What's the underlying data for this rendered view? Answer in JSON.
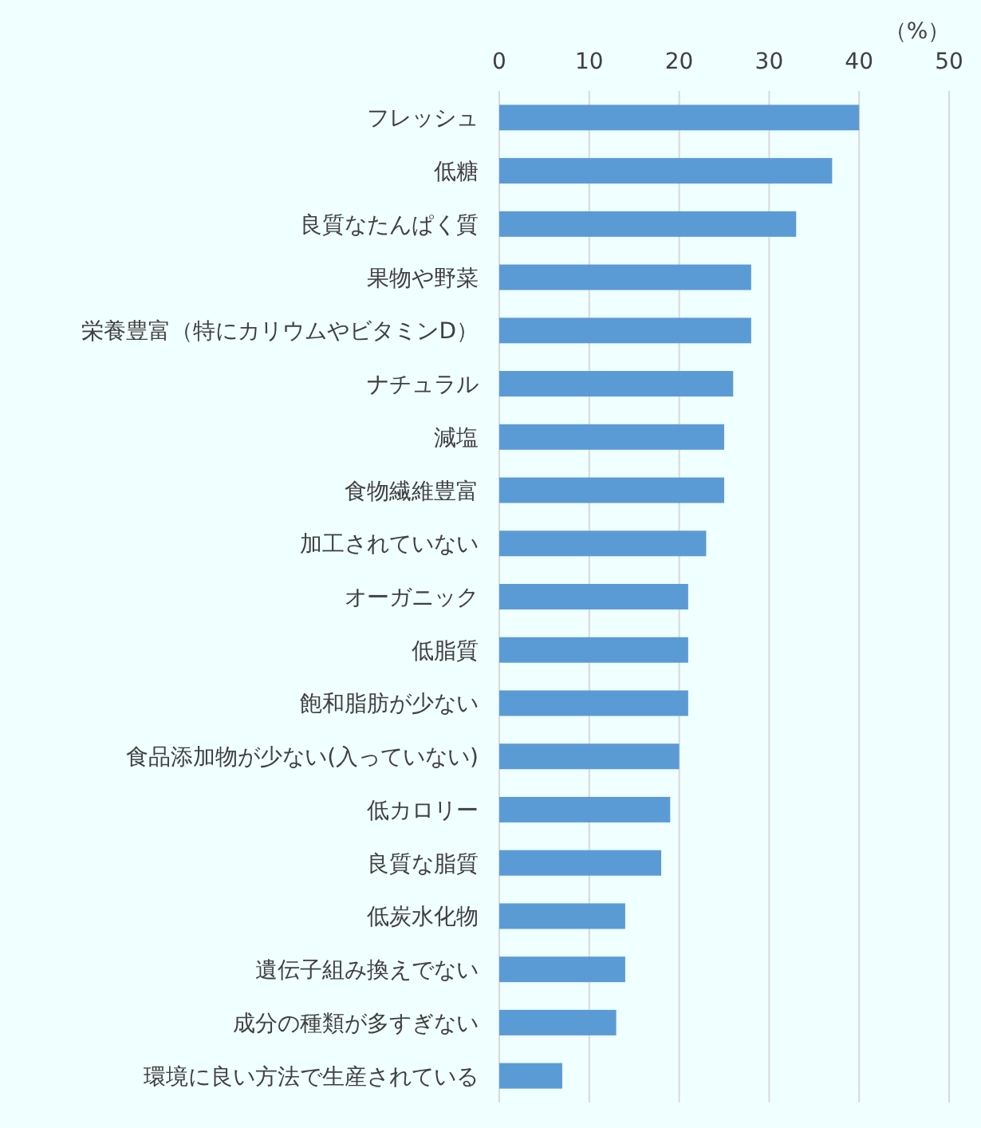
{
  "chart_data": {
    "type": "bar",
    "orientation": "horizontal",
    "xlabel": "（%）",
    "categories": [
      "フレッシュ",
      "低糖",
      "良質なたんぱく質",
      "果物や野菜",
      "栄養豊富（特にカリウムやビタミンD）",
      "ナチュラル",
      "減塩",
      "食物繊維豊富",
      "加工されていない",
      "オーガニック",
      "低脂質",
      "飽和脂肪が少ない",
      "食品添加物が少ない(入っていない)",
      "低カロリー",
      "良質な脂質",
      "低炭水化物",
      "遺伝子組み換えでない",
      "成分の種類が多すぎない",
      "環境に良い方法で生産されている"
    ],
    "values": [
      40,
      37,
      33,
      28,
      28,
      26,
      25,
      25,
      23,
      21,
      21,
      21,
      20,
      19,
      18,
      14,
      14,
      13,
      7
    ],
    "color": "#5b9bd5",
    "xlim": [
      0,
      50
    ],
    "xticks": [
      0,
      10,
      20,
      30,
      40,
      50
    ],
    "grid": "x"
  }
}
